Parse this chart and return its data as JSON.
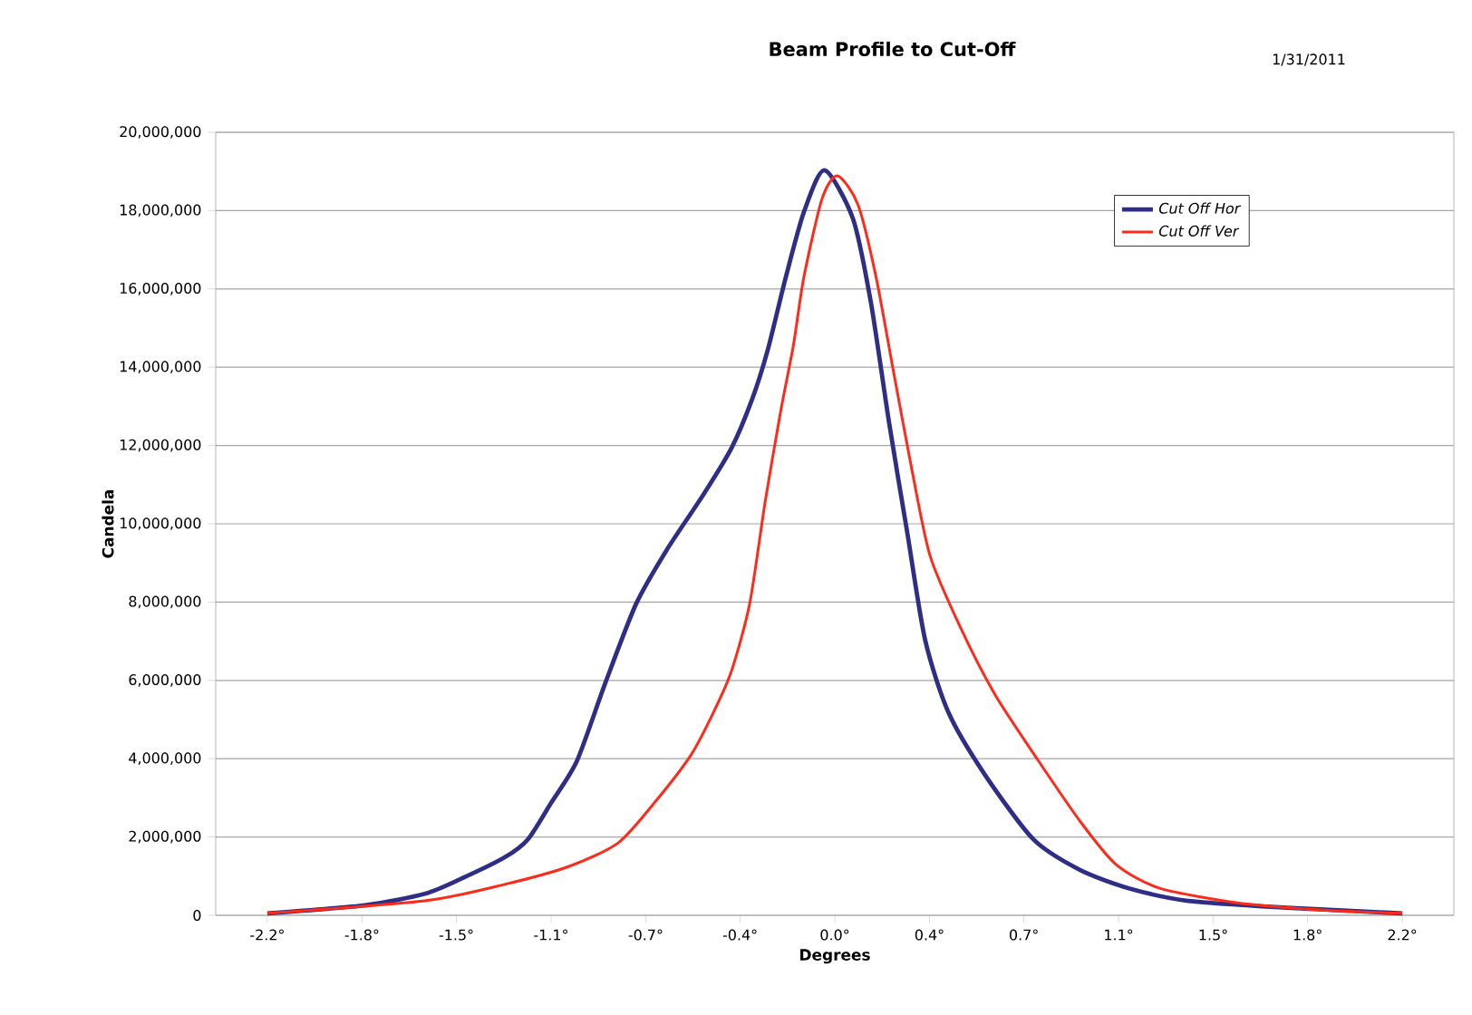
{
  "chart_data": {
    "type": "line",
    "title": "Beam Profile to Cut-Off",
    "annotations": [
      "1/31/2011"
    ],
    "xlabel": "Degrees",
    "ylabel": "Candela",
    "xlim": [
      -2.4,
      2.4
    ],
    "xticks": [
      {
        "value": -2.2,
        "label": "-2.2°"
      },
      {
        "value": -1.833,
        "label": "-1.8°"
      },
      {
        "value": -1.467,
        "label": "-1.5°"
      },
      {
        "value": -1.1,
        "label": "-1.1°"
      },
      {
        "value": -0.733,
        "label": "-0.7°"
      },
      {
        "value": -0.367,
        "label": "-0.4°"
      },
      {
        "value": 0,
        "label": "0.0°"
      },
      {
        "value": 0.367,
        "label": "0.4°"
      },
      {
        "value": 0.733,
        "label": "0.7°"
      },
      {
        "value": 1.1,
        "label": "1.1°"
      },
      {
        "value": 1.467,
        "label": "1.5°"
      },
      {
        "value": 1.833,
        "label": "1.8°"
      },
      {
        "value": 2.2,
        "label": "2.2°"
      }
    ],
    "ylim": [
      0,
      20000000
    ],
    "yticks": [
      0,
      {
        "value": 2000000,
        "label": "2,000,000"
      },
      {
        "value": 4000000,
        "label": "4,000,000"
      },
      {
        "value": 6000000,
        "label": "6,000,000"
      },
      {
        "value": 8000000,
        "label": "8,000,000"
      },
      {
        "value": 10000000,
        "label": "10,000,000"
      },
      {
        "value": 12000000,
        "label": "12,000,000"
      },
      {
        "value": 14000000,
        "label": "14,000,000"
      },
      {
        "value": 16000000,
        "label": "16,000,000"
      },
      {
        "value": 18000000,
        "label": "18,000,000"
      },
      {
        "value": 20000000,
        "label": "20,000,000"
      }
    ],
    "grid": "y",
    "legend": "top right",
    "series": [
      {
        "name": "Cut Off Hor",
        "color": "#2e2e86",
        "x": [
          -2.2,
          -1.82,
          -1.59,
          -1.45,
          -1.28,
          -1.19,
          -1.1,
          -1.0,
          -0.89,
          -0.77,
          -0.65,
          -0.51,
          -0.4,
          -0.32,
          -0.26,
          -0.19,
          -0.12,
          -0.04,
          0.07,
          0.14,
          0.21,
          0.28,
          0.35,
          0.44,
          0.58,
          0.77,
          0.95,
          1.14,
          1.37,
          1.77,
          2.2
        ],
        "values": [
          50000,
          260000,
          550000,
          930000,
          1480000,
          1940000,
          2870000,
          3940000,
          5930000,
          7960000,
          9350000,
          10740000,
          11940000,
          13190000,
          14440000,
          16300000,
          17960000,
          19030000,
          17800000,
          15650000,
          12600000,
          9810000,
          7040000,
          5190000,
          3610000,
          1940000,
          1160000,
          690000,
          370000,
          190000,
          50000
        ]
      },
      {
        "name": "Cut Off Ver",
        "color": "#ff2a1a",
        "x": [
          -2.2,
          -1.59,
          -1.28,
          -1.03,
          -0.84,
          -0.7,
          -0.56,
          -0.47,
          -0.4,
          -0.33,
          -0.27,
          -0.21,
          -0.16,
          -0.12,
          -0.05,
          0.01,
          0.09,
          0.16,
          0.23,
          0.3,
          0.37,
          0.49,
          0.62,
          0.79,
          0.95,
          1.09,
          1.26,
          1.56,
          1.88,
          2.2
        ],
        "values": [
          50000,
          370000,
          790000,
          1250000,
          1850000,
          2870000,
          4070000,
          5190000,
          6250000,
          7960000,
          10560000,
          12870000,
          14580000,
          16300000,
          18290000,
          18890000,
          18150000,
          16300000,
          13800000,
          11340000,
          9170000,
          7310000,
          5650000,
          3940000,
          2410000,
          1300000,
          690000,
          320000,
          140000,
          50000
        ]
      }
    ]
  }
}
